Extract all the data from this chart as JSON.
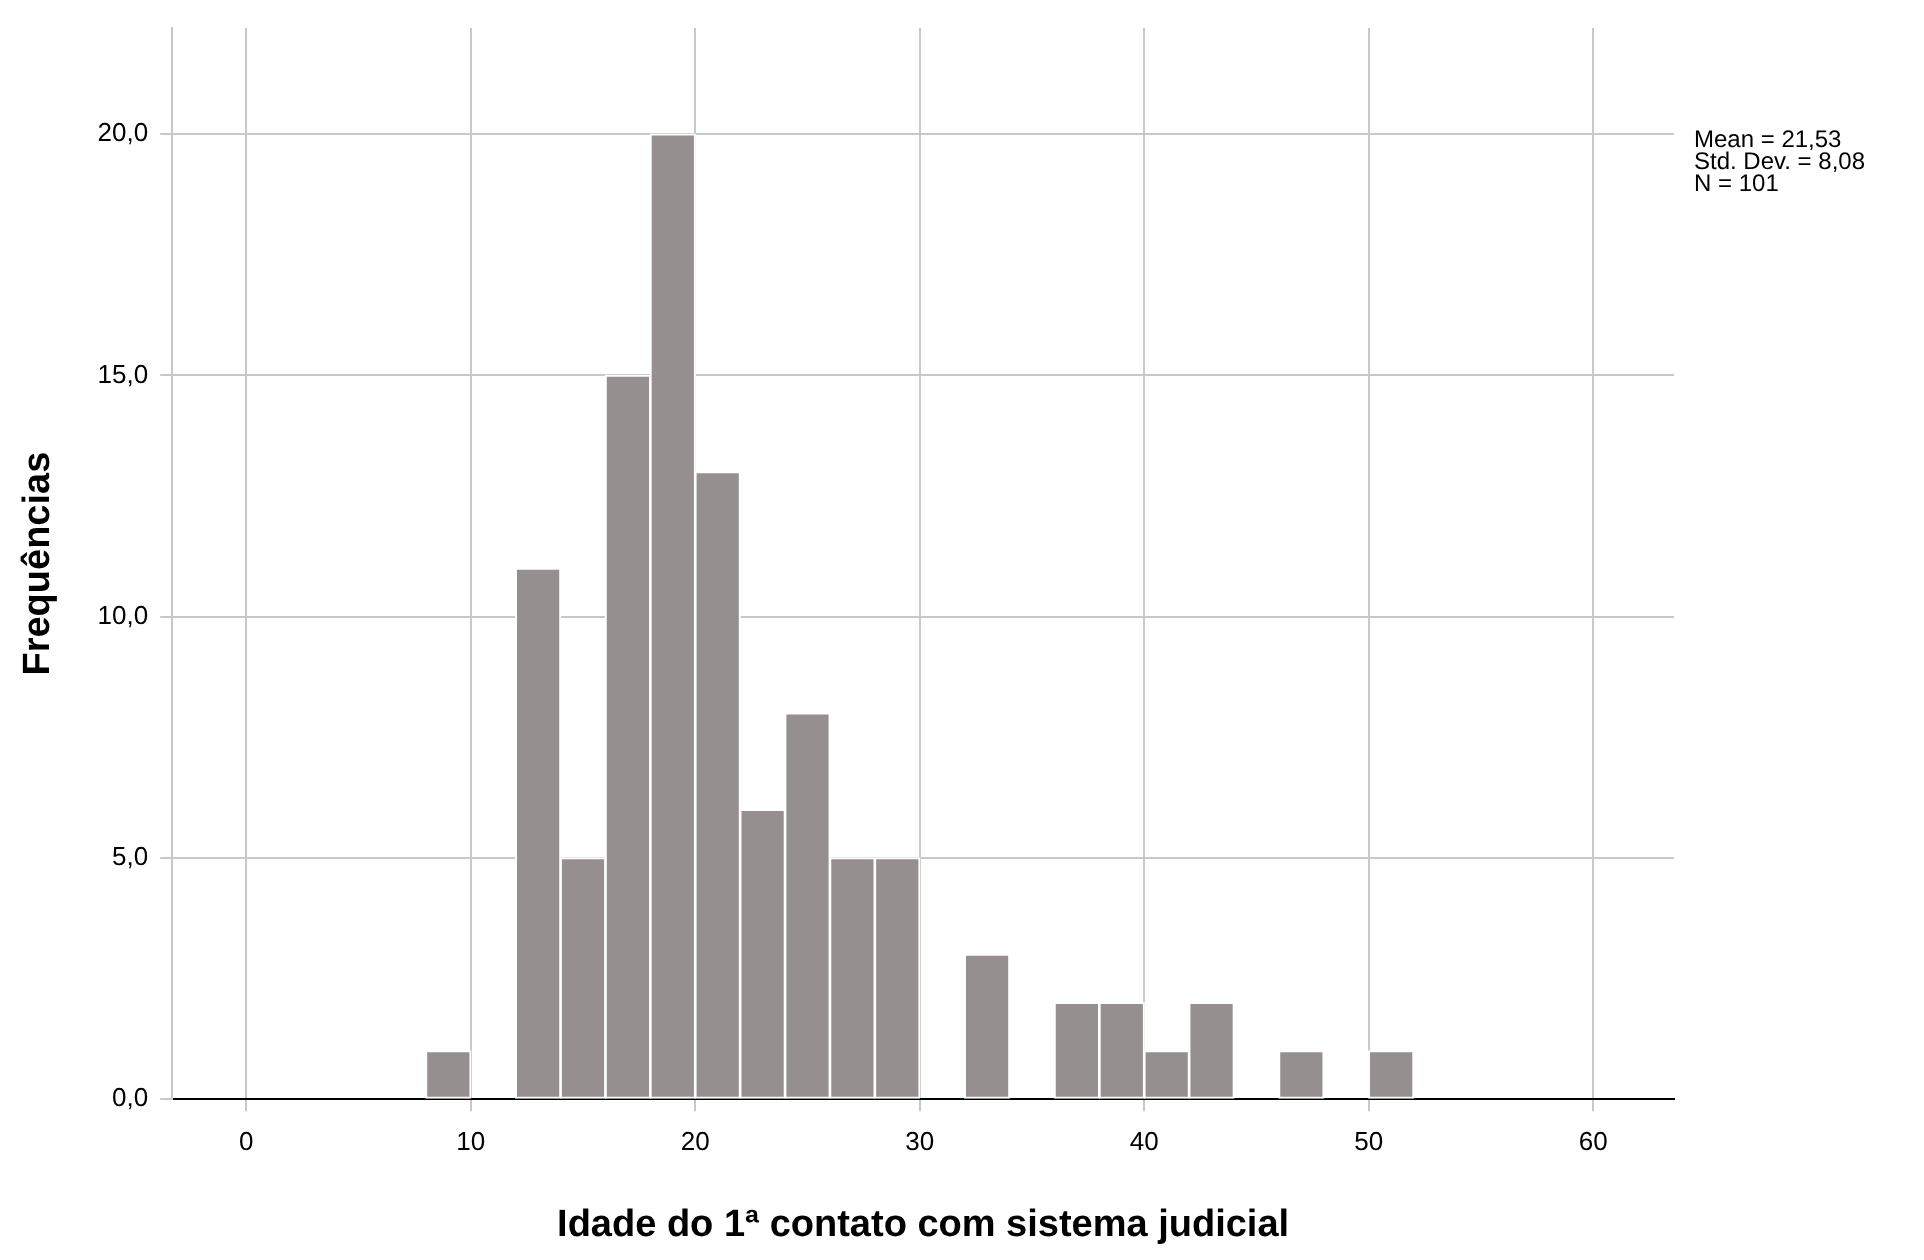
{
  "chart_data": {
    "type": "histogram",
    "xlabel": "Idade do 1ª contato com sistema judicial",
    "ylabel": "Frequências",
    "bins": [
      8,
      10,
      12,
      14,
      16,
      18,
      20,
      22,
      24,
      26,
      28,
      30,
      32,
      34,
      36,
      38,
      40,
      42,
      44,
      46,
      48,
      50,
      52
    ],
    "values": [
      1,
      0,
      11,
      5,
      15,
      20,
      13,
      6,
      8,
      5,
      5,
      0,
      3,
      0,
      2,
      2,
      1,
      2,
      0,
      1,
      0,
      1
    ],
    "color": "#958f8f",
    "xlim": [
      -3.3,
      63.6
    ],
    "xticks": [
      0,
      10,
      20,
      30,
      40,
      50,
      60
    ],
    "ylim": [
      0,
      22.2
    ],
    "yticks": [
      {
        "value": 0,
        "label": "0,0"
      },
      {
        "value": 5,
        "label": "5,0"
      },
      {
        "value": 10,
        "label": "10,0"
      },
      {
        "value": 15,
        "label": "15,0"
      },
      {
        "value": 20,
        "label": "20,0"
      }
    ],
    "grid": true,
    "legend": false,
    "annotations": [
      "Mean = 21,53",
      "Std. Dev. = 8,08",
      "N = 101"
    ]
  }
}
